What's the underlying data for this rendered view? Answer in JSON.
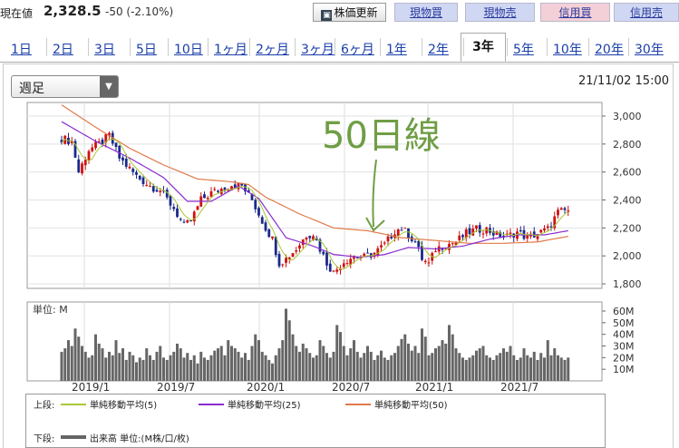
{
  "header": {
    "price_label": "現在値",
    "price": "2,328.5",
    "change": "-50 (-2.10%)",
    "update_button": "株価更新",
    "buttons": [
      "現物買",
      "現物売",
      "信用買",
      "信用売"
    ]
  },
  "tabs": [
    "1日",
    "2日",
    "3日",
    "5日",
    "10日",
    "1ヶ月",
    "2ヶ月",
    "3ヶ月",
    "6ヶ月",
    "1年",
    "2年",
    "3年",
    "5年",
    "10年",
    "20年",
    "30年"
  ],
  "active_tab": "3年",
  "period_select": {
    "value": "週足"
  },
  "datetime": "21/11/02 15:00",
  "annotation": "50日線",
  "legend": {
    "upper_label": "上段:",
    "ma5": "単純移動平均(5)",
    "ma25": "単純移動平均(25)",
    "ma50": "単純移動平均(50)",
    "lower_label": "下段:",
    "volume": "出来高 単位:(M株/口/枚)"
  },
  "colors": {
    "up": "#d01010",
    "down": "#1a2a8a",
    "ma5": "#a8c838",
    "ma25": "#8a2ed0",
    "ma50": "#e07a4a",
    "volume": "#666666",
    "tab_link": "#1a3ea8"
  },
  "chart_data": {
    "type": "candlestick",
    "x_ticks": [
      "2019/1",
      "2019/7",
      "2020/1",
      "2020/7",
      "2021/1",
      "2021/7"
    ],
    "price_ylim": [
      1800,
      3000
    ],
    "price_ticks": [
      "3,000",
      "2,800",
      "2,600",
      "2,400",
      "2,200",
      "2,000",
      "1,800"
    ],
    "volume_unit": "単位: M",
    "volume_ylim": [
      0,
      60
    ],
    "volume_ticks": [
      "60M",
      "50M",
      "40M",
      "30M",
      "20M",
      "10M"
    ],
    "weeks": 150,
    "close_anchors": [
      [
        0,
        2840
      ],
      [
        3,
        2820
      ],
      [
        5,
        2600
      ],
      [
        8,
        2760
      ],
      [
        11,
        2800
      ],
      [
        14,
        2860
      ],
      [
        17,
        2700
      ],
      [
        22,
        2570
      ],
      [
        26,
        2500
      ],
      [
        29,
        2470
      ],
      [
        33,
        2340
      ],
      [
        36,
        2210
      ],
      [
        38,
        2250
      ],
      [
        41,
        2400
      ],
      [
        44,
        2450
      ],
      [
        47,
        2480
      ],
      [
        50,
        2510
      ],
      [
        53,
        2500
      ],
      [
        56,
        2400
      ],
      [
        58,
        2300
      ],
      [
        60,
        2200
      ],
      [
        62,
        2120
      ],
      [
        64,
        1950
      ],
      [
        66,
        1980
      ],
      [
        69,
        2050
      ],
      [
        72,
        2150
      ],
      [
        74,
        2160
      ],
      [
        76,
        2050
      ],
      [
        78,
        1950
      ],
      [
        80,
        1880
      ],
      [
        83,
        1960
      ],
      [
        86,
        2000
      ],
      [
        89,
        1990
      ],
      [
        92,
        2020
      ],
      [
        95,
        2080
      ],
      [
        98,
        2180
      ],
      [
        100,
        2200
      ],
      [
        102,
        2150
      ],
      [
        104,
        2100
      ],
      [
        106,
        1980
      ],
      [
        108,
        1940
      ],
      [
        110,
        2050
      ],
      [
        113,
        2080
      ],
      [
        116,
        2100
      ],
      [
        119,
        2160
      ],
      [
        122,
        2190
      ],
      [
        125,
        2190
      ],
      [
        128,
        2150
      ],
      [
        131,
        2140
      ],
      [
        134,
        2170
      ],
      [
        137,
        2130
      ],
      [
        140,
        2160
      ],
      [
        143,
        2190
      ],
      [
        146,
        2310
      ],
      [
        149,
        2328
      ]
    ],
    "ma50_anchors": [
      [
        0,
        3080
      ],
      [
        10,
        2920
      ],
      [
        20,
        2770
      ],
      [
        30,
        2650
      ],
      [
        40,
        2550
      ],
      [
        50,
        2530
      ],
      [
        55,
        2510
      ],
      [
        60,
        2420
      ],
      [
        70,
        2300
      ],
      [
        80,
        2200
      ],
      [
        90,
        2180
      ],
      [
        100,
        2130
      ],
      [
        110,
        2110
      ],
      [
        120,
        2090
      ],
      [
        130,
        2090
      ],
      [
        140,
        2100
      ],
      [
        149,
        2140
      ]
    ],
    "ma25_anchors": [
      [
        0,
        2960
      ],
      [
        10,
        2820
      ],
      [
        20,
        2700
      ],
      [
        30,
        2560
      ],
      [
        37,
        2390
      ],
      [
        44,
        2390
      ],
      [
        52,
        2500
      ],
      [
        58,
        2410
      ],
      [
        66,
        2130
      ],
      [
        74,
        2070
      ],
      [
        80,
        2010
      ],
      [
        88,
        1990
      ],
      [
        95,
        2010
      ],
      [
        102,
        2060
      ],
      [
        110,
        2050
      ],
      [
        118,
        2070
      ],
      [
        126,
        2120
      ],
      [
        134,
        2150
      ],
      [
        142,
        2150
      ],
      [
        149,
        2180
      ]
    ],
    "volumes": [
      25,
      28,
      35,
      30,
      45,
      38,
      30,
      25,
      20,
      22,
      40,
      32,
      28,
      20,
      25,
      22,
      35,
      24,
      28,
      18,
      25,
      22,
      16,
      20,
      18,
      28,
      22,
      18,
      25,
      30,
      20,
      18,
      22,
      25,
      32,
      28,
      20,
      24,
      18,
      22,
      15,
      25,
      20,
      18,
      22,
      26,
      28,
      30,
      22,
      35,
      30,
      28,
      25,
      20,
      24,
      18,
      30,
      40,
      35,
      25,
      22,
      18,
      15,
      22,
      28,
      35,
      62,
      52,
      40,
      30,
      25,
      32,
      28,
      24,
      20,
      22,
      35,
      30,
      24,
      20,
      25,
      48,
      42,
      30,
      22,
      28,
      35,
      25,
      20,
      24,
      30,
      25,
      18,
      22,
      26,
      20,
      18,
      22,
      24,
      30,
      36,
      40,
      32,
      26,
      30,
      24,
      45,
      38,
      22,
      24,
      28,
      30,
      35,
      32,
      48,
      40,
      28,
      24,
      20,
      18,
      20,
      22,
      26,
      28,
      30,
      22,
      20,
      18,
      22,
      24,
      28,
      25,
      30,
      22,
      18,
      20,
      28,
      22,
      20,
      25,
      18,
      24,
      20,
      35,
      22,
      28,
      22,
      20,
      18,
      20
    ]
  }
}
